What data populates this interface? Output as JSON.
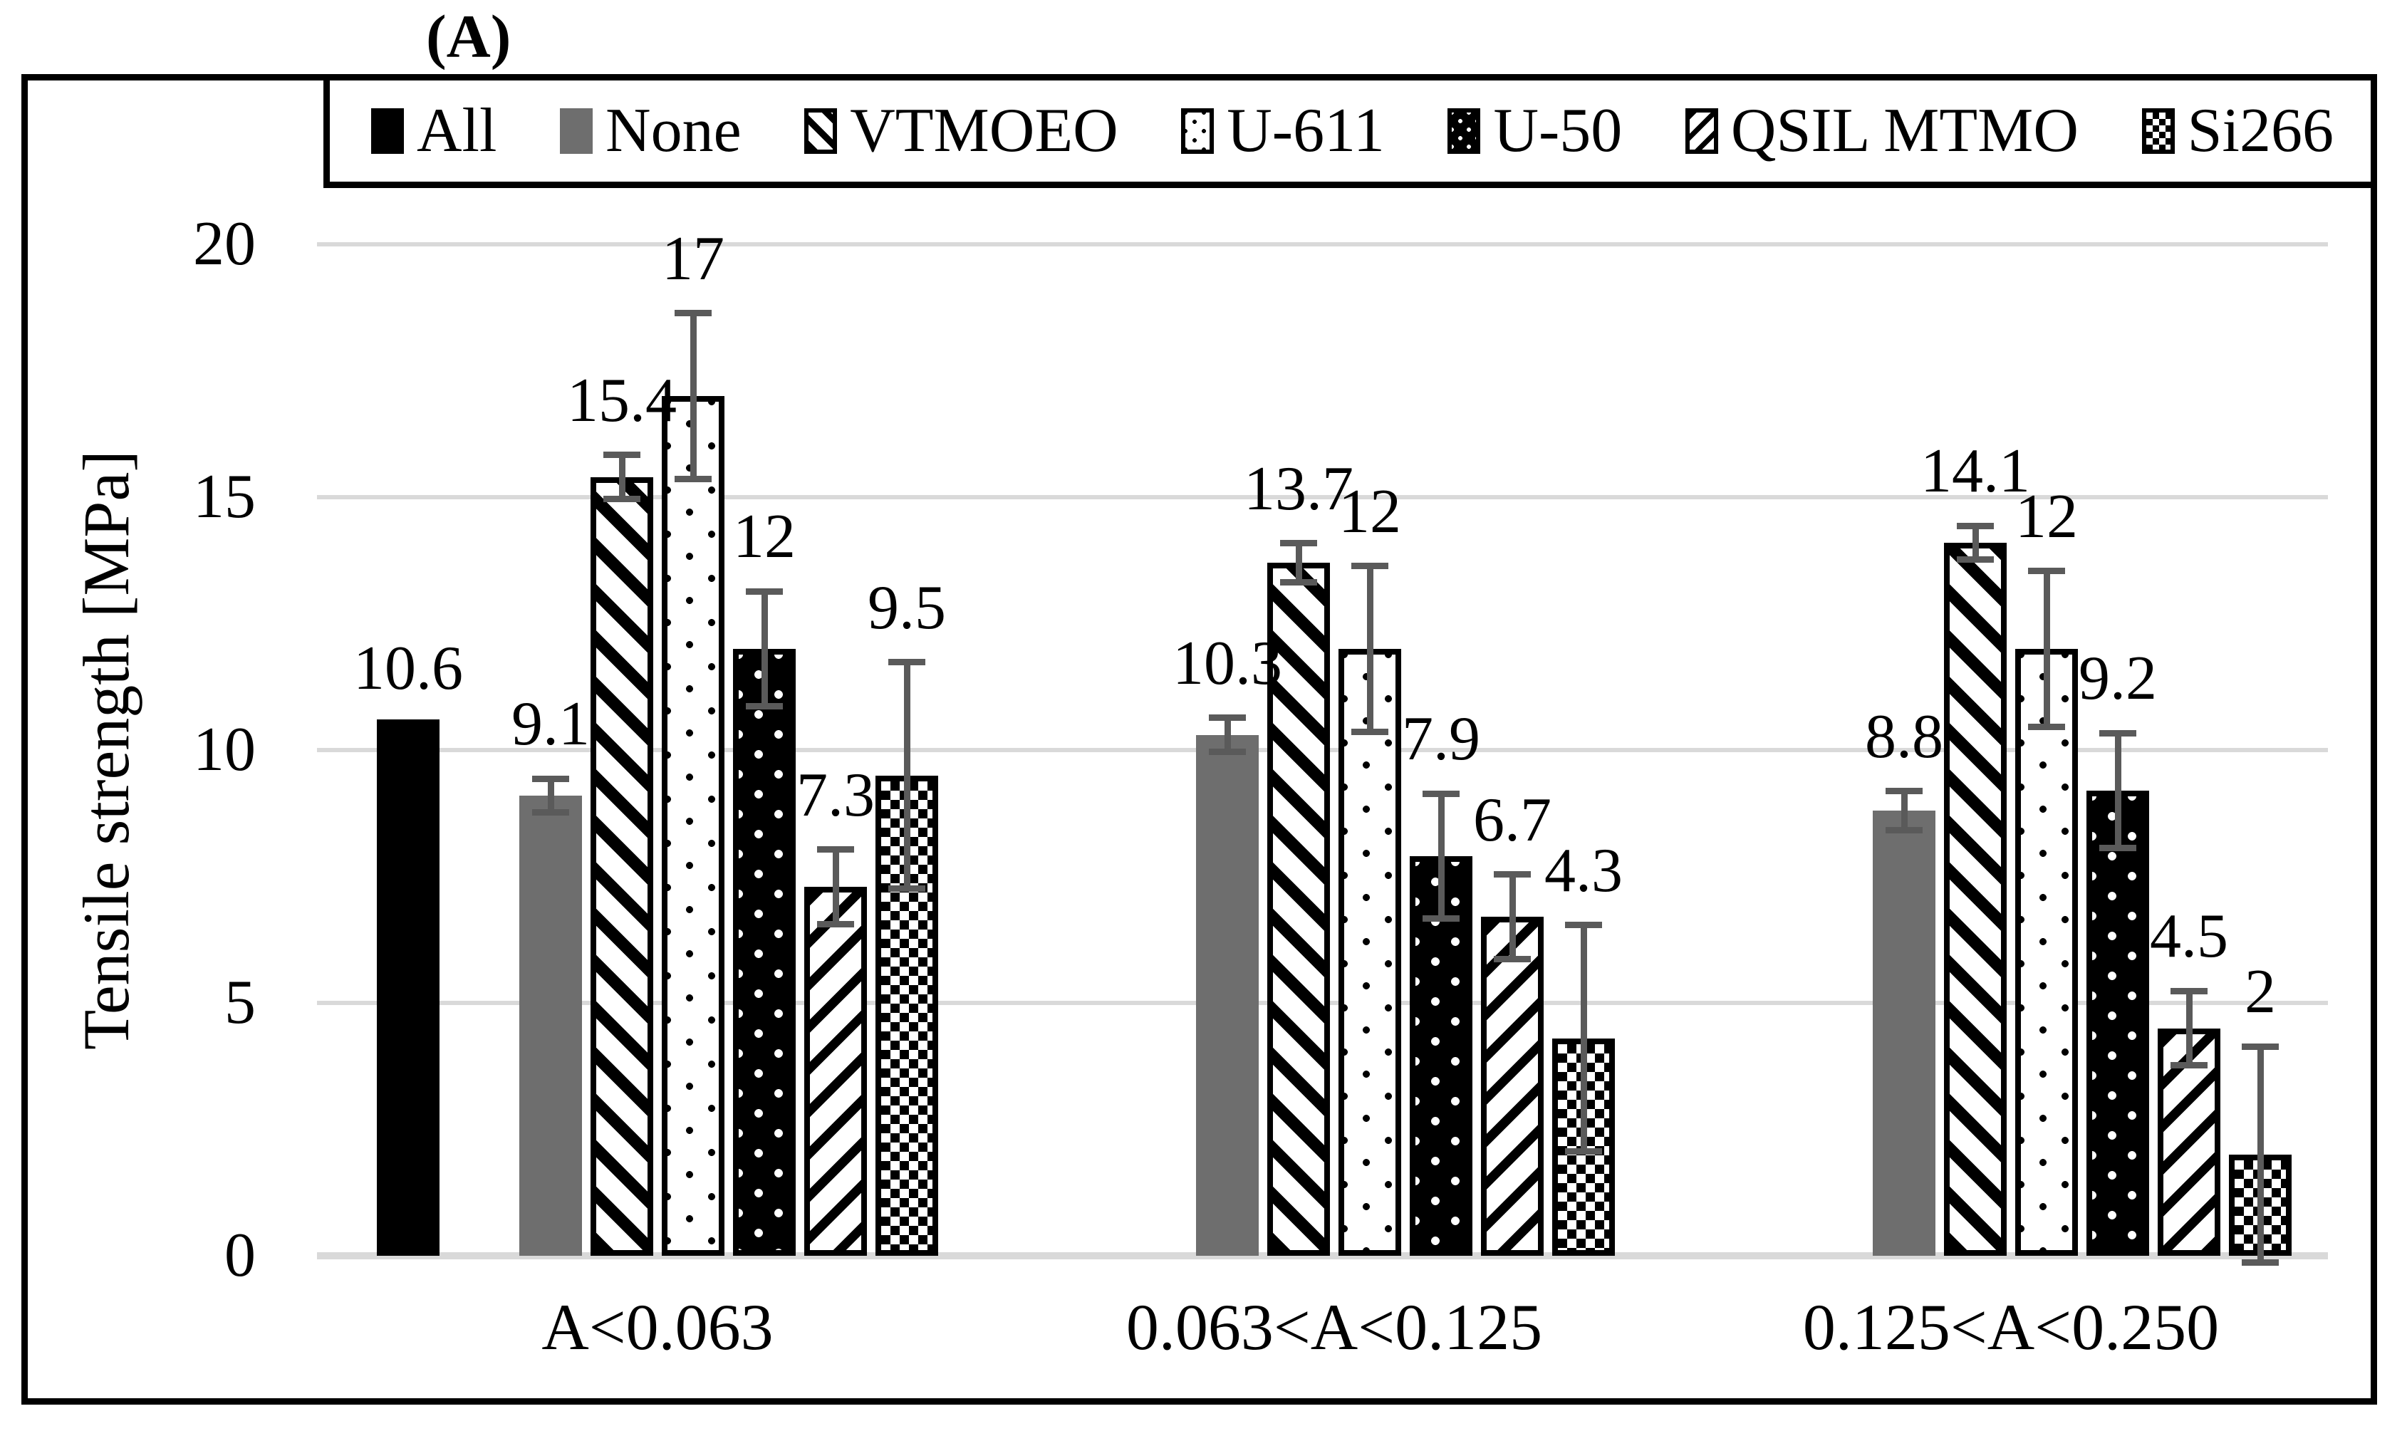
{
  "figure_label": "(A)",
  "chart_data": {
    "type": "bar",
    "title": "(A)",
    "ylabel": "Tensile strength [MPa]",
    "xlabel": "",
    "ylim": [
      0,
      20
    ],
    "yticks": [
      0,
      5,
      10,
      15,
      20
    ],
    "grid": true,
    "legend_position": "top",
    "categories": [
      "A<0.063",
      "0.063<A<0.125",
      "0.125<A<0.250"
    ],
    "series": [
      {
        "name": "All",
        "pattern": "solid-black",
        "slot": 0,
        "values": [
          10.6,
          null,
          null
        ],
        "errors": [
          null,
          null,
          null
        ]
      },
      {
        "name": "None",
        "pattern": "solid-gray",
        "slot": 2,
        "values": [
          9.1,
          10.3,
          8.8
        ],
        "errors": [
          0.4,
          0.4,
          0.45
        ]
      },
      {
        "name": "VTMOEO",
        "pattern": "diagonal-down-hatch",
        "slot": 3,
        "values": [
          15.4,
          13.7,
          14.1
        ],
        "errors": [
          0.5,
          0.45,
          0.4
        ]
      },
      {
        "name": "U-611",
        "pattern": "black-dots-on-white",
        "slot": 4,
        "values": [
          17,
          12,
          12
        ],
        "errors": [
          1.7,
          1.7,
          1.6
        ]
      },
      {
        "name": "U-50",
        "pattern": "white-dots-on-black",
        "slot": 5,
        "values": [
          12,
          7.9,
          9.2
        ],
        "errors": [
          1.2,
          1.3,
          1.2
        ]
      },
      {
        "name": "QSIL MTMO",
        "pattern": "diagonal-up-hatch",
        "slot": 6,
        "values": [
          7.3,
          6.7,
          4.5
        ],
        "errors": [
          0.8,
          0.9,
          0.8
        ]
      },
      {
        "name": "Si266",
        "pattern": "checkerboard",
        "slot": 7,
        "values": [
          9.5,
          4.3,
          2
        ],
        "errors": [
          2.3,
          2.3,
          2.2
        ]
      }
    ],
    "colors": {
      "bar_black": "#000000",
      "bar_gray": "#6e6e6e",
      "error_bar": "#5a5a5a",
      "gridline": "#d9d9d9",
      "text": "#000000"
    }
  }
}
